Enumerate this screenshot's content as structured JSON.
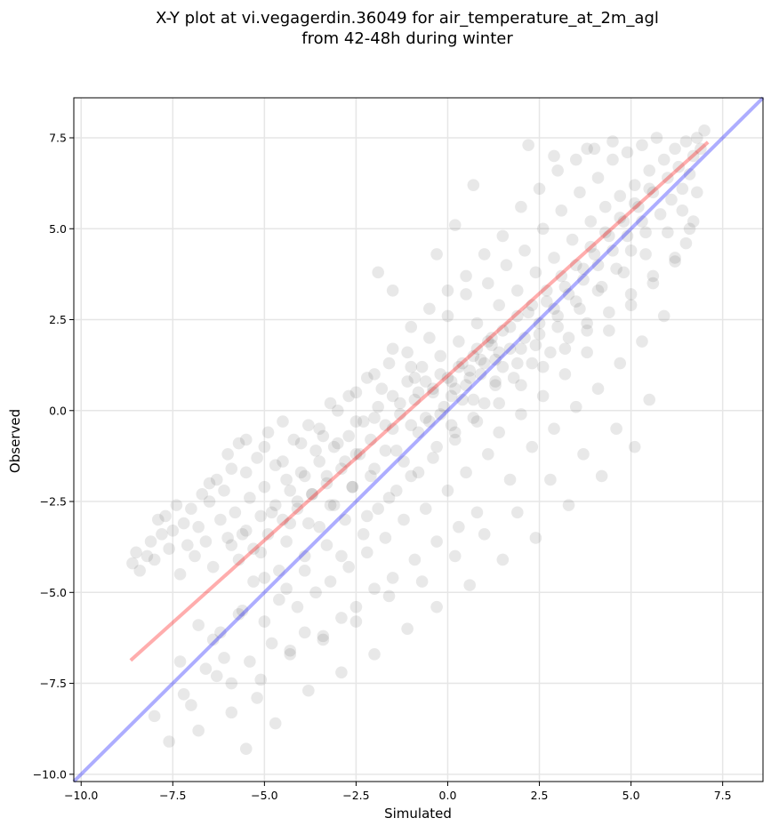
{
  "chart_data": {
    "type": "scatter",
    "title_line1": "X-Y plot at vi.vegagerdin.36049 for air_temperature_at_2m_agl",
    "title_line2": "from 42-48h during winter",
    "xlabel": "Simulated",
    "ylabel": "Observed",
    "xlim": [
      -10.2,
      8.6
    ],
    "ylim": [
      -10.2,
      8.6
    ],
    "xticks": [
      -10.0,
      -7.5,
      -5.0,
      -2.5,
      0.0,
      2.5,
      5.0,
      7.5
    ],
    "yticks": [
      -10.0,
      -7.5,
      -5.0,
      -2.5,
      0.0,
      2.5,
      5.0,
      7.5
    ],
    "xtick_labels": [
      "−10.0",
      "−7.5",
      "−5.0",
      "−2.5",
      "0.0",
      "2.5",
      "5.0",
      "7.5"
    ],
    "ytick_labels": [
      "−10.0",
      "−7.5",
      "−5.0",
      "−2.5",
      "0.0",
      "2.5",
      "5.0",
      "7.5"
    ],
    "grid": true,
    "point_color": "#000000",
    "point_alpha": 0.09,
    "identity_line": {
      "x": [
        -10.2,
        8.6
      ],
      "y": [
        -10.2,
        8.6
      ],
      "color": "#0000ff"
    },
    "fit_line": {
      "x": [
        -8.65,
        7.1
      ],
      "y": [
        -6.87,
        7.38
      ],
      "color": "#ff0000"
    },
    "points": [
      [
        -8.6,
        -4.2
      ],
      [
        -8.5,
        -3.9
      ],
      [
        -8.4,
        -4.4
      ],
      [
        -8.2,
        -4.0
      ],
      [
        -8.1,
        -3.6
      ],
      [
        -8.0,
        -4.1
      ],
      [
        -7.9,
        -3.0
      ],
      [
        -7.8,
        -3.4
      ],
      [
        -7.7,
        -2.9
      ],
      [
        -7.6,
        -3.8
      ],
      [
        -7.5,
        -3.3
      ],
      [
        -7.4,
        -2.6
      ],
      [
        -7.3,
        -4.5
      ],
      [
        -7.2,
        -3.1
      ],
      [
        -7.1,
        -3.7
      ],
      [
        -7.0,
        -2.7
      ],
      [
        -6.9,
        -4.0
      ],
      [
        -6.8,
        -3.2
      ],
      [
        -6.7,
        -2.3
      ],
      [
        -6.6,
        -3.6
      ],
      [
        -6.5,
        -2.5
      ],
      [
        -6.4,
        -4.3
      ],
      [
        -6.3,
        -1.9
      ],
      [
        -6.2,
        -3.0
      ],
      [
        -6.1,
        -2.2
      ],
      [
        -6.0,
        -3.5
      ],
      [
        -5.9,
        -1.6
      ],
      [
        -5.8,
        -2.8
      ],
      [
        -5.7,
        -0.9
      ],
      [
        -5.6,
        -3.4
      ],
      [
        -5.5,
        -1.7
      ],
      [
        -5.4,
        -2.4
      ],
      [
        -5.3,
        -4.7
      ],
      [
        -5.2,
        -1.3
      ],
      [
        -5.1,
        -3.9
      ],
      [
        -5.0,
        -2.1
      ],
      [
        -4.9,
        -0.6
      ],
      [
        -4.8,
        -2.8
      ],
      [
        -4.7,
        -1.5
      ],
      [
        -4.6,
        -4.4
      ],
      [
        -4.5,
        -0.3
      ],
      [
        -4.4,
        -1.9
      ],
      [
        -4.3,
        -3.1
      ],
      [
        -4.2,
        -0.8
      ],
      [
        -4.1,
        -2.5
      ],
      [
        -4.0,
        -1.7
      ],
      [
        -3.9,
        -4.0
      ],
      [
        -3.8,
        -0.4
      ],
      [
        -3.7,
        -2.3
      ],
      [
        -3.6,
        -1.1
      ],
      [
        -3.5,
        -3.2
      ],
      [
        -3.4,
        -0.7
      ],
      [
        -3.3,
        -1.8
      ],
      [
        -3.2,
        0.2
      ],
      [
        -3.1,
        -2.6
      ],
      [
        -3.0,
        -0.9
      ],
      [
        -2.9,
        -4.0
      ],
      [
        -2.8,
        -1.4
      ],
      [
        -2.7,
        0.4
      ],
      [
        -2.6,
        -2.1
      ],
      [
        -2.5,
        -0.3
      ],
      [
        -2.4,
        -1.2
      ],
      [
        -2.3,
        -3.4
      ],
      [
        -2.2,
        0.9
      ],
      [
        -2.1,
        -1.8
      ],
      [
        -2.0,
        -0.2
      ],
      [
        -1.9,
        -2.7
      ],
      [
        -1.8,
        0.6
      ],
      [
        -1.7,
        -1.1
      ],
      [
        -1.6,
        1.3
      ],
      [
        -1.5,
        -0.5
      ],
      [
        -1.4,
        -2.2
      ],
      [
        -1.3,
        0.2
      ],
      [
        -1.2,
        -1.4
      ],
      [
        -1.1,
        1.6
      ],
      [
        -1.0,
        -0.4
      ],
      [
        -0.9,
        0.9
      ],
      [
        -0.8,
        -1.7
      ],
      [
        -0.7,
        1.2
      ],
      [
        -0.6,
        -0.2
      ],
      [
        -0.5,
        2.0
      ],
      [
        -0.4,
        0.5
      ],
      [
        -0.3,
        -1.0
      ],
      [
        -0.2,
        1.5
      ],
      [
        -0.1,
        0.1
      ],
      [
        0.0,
        2.6
      ],
      [
        0.1,
        0.8
      ],
      [
        0.2,
        -0.6
      ],
      [
        0.3,
        1.9
      ],
      [
        0.4,
        0.3
      ],
      [
        0.5,
        3.2
      ],
      [
        0.6,
        1.1
      ],
      [
        0.7,
        -0.2
      ],
      [
        0.8,
        2.4
      ],
      [
        0.9,
        1.4
      ],
      [
        1.0,
        0.2
      ],
      [
        1.1,
        3.5
      ],
      [
        1.2,
        1.8
      ],
      [
        1.3,
        0.7
      ],
      [
        1.4,
        2.9
      ],
      [
        1.5,
        1.2
      ],
      [
        1.6,
        4.0
      ],
      [
        1.7,
        2.3
      ],
      [
        1.8,
        0.9
      ],
      [
        1.9,
        3.3
      ],
      [
        2.0,
        1.7
      ],
      [
        2.1,
        4.4
      ],
      [
        2.2,
        2.7
      ],
      [
        2.3,
        1.3
      ],
      [
        2.4,
        3.8
      ],
      [
        2.5,
        2.1
      ],
      [
        2.6,
        5.0
      ],
      [
        2.7,
        3.0
      ],
      [
        2.8,
        1.6
      ],
      [
        2.9,
        4.2
      ],
      [
        3.0,
        2.6
      ],
      [
        3.1,
        5.5
      ],
      [
        3.2,
        3.4
      ],
      [
        3.3,
        2.0
      ],
      [
        3.4,
        4.7
      ],
      [
        3.5,
        3.0
      ],
      [
        3.6,
        6.0
      ],
      [
        3.7,
        3.9
      ],
      [
        3.8,
        2.4
      ],
      [
        3.9,
        5.2
      ],
      [
        4.0,
        4.3
      ],
      [
        4.1,
        6.4
      ],
      [
        4.2,
        3.4
      ],
      [
        4.3,
        5.6
      ],
      [
        4.4,
        4.8
      ],
      [
        4.5,
        6.9
      ],
      [
        4.6,
        3.9
      ],
      [
        4.7,
        5.9
      ],
      [
        4.8,
        5.2
      ],
      [
        4.9,
        7.1
      ],
      [
        5.0,
        4.4
      ],
      [
        5.1,
        6.2
      ],
      [
        5.2,
        5.6
      ],
      [
        5.3,
        7.3
      ],
      [
        5.4,
        4.9
      ],
      [
        5.5,
        6.6
      ],
      [
        5.6,
        6.0
      ],
      [
        5.7,
        7.5
      ],
      [
        5.8,
        5.4
      ],
      [
        5.9,
        6.9
      ],
      [
        6.0,
        6.4
      ],
      [
        6.1,
        5.8
      ],
      [
        6.2,
        7.2
      ],
      [
        6.3,
        6.7
      ],
      [
        6.4,
        6.1
      ],
      [
        6.5,
        7.4
      ],
      [
        6.6,
        6.5
      ],
      [
        6.7,
        7.0
      ],
      [
        6.8,
        7.5
      ],
      [
        6.9,
        7.2
      ],
      [
        7.0,
        7.7
      ],
      [
        -7.3,
        -6.9
      ],
      [
        -7.0,
        -8.1
      ],
      [
        -6.8,
        -5.9
      ],
      [
        -6.6,
        -7.1
      ],
      [
        -6.4,
        -6.3
      ],
      [
        -6.1,
        -6.8
      ],
      [
        -5.9,
        -7.5
      ],
      [
        -5.7,
        -5.6
      ],
      [
        -5.4,
        -6.9
      ],
      [
        -5.2,
        -7.9
      ],
      [
        -5.0,
        -5.8
      ],
      [
        -4.8,
        -6.4
      ],
      [
        -4.6,
        -5.2
      ],
      [
        -4.3,
        -6.7
      ],
      [
        -4.1,
        -5.4
      ],
      [
        -3.9,
        -6.1
      ],
      [
        -3.6,
        -5.0
      ],
      [
        -3.4,
        -6.3
      ],
      [
        -3.2,
        -4.7
      ],
      [
        -2.9,
        -5.7
      ],
      [
        -2.7,
        -4.3
      ],
      [
        -2.5,
        -5.4
      ],
      [
        -2.2,
        -3.9
      ],
      [
        -2.0,
        -4.9
      ],
      [
        -1.7,
        -3.5
      ],
      [
        -1.5,
        -4.6
      ],
      [
        -1.2,
        -3.0
      ],
      [
        -0.9,
        -4.1
      ],
      [
        -0.6,
        -2.7
      ],
      [
        -0.3,
        -3.6
      ],
      [
        0.0,
        -2.2
      ],
      [
        0.3,
        -3.2
      ],
      [
        0.5,
        -1.7
      ],
      [
        0.8,
        -2.8
      ],
      [
        1.1,
        -1.2
      ],
      [
        1.4,
        -0.6
      ],
      [
        1.7,
        -1.9
      ],
      [
        2.0,
        -0.1
      ],
      [
        2.3,
        -1.0
      ],
      [
        2.6,
        0.4
      ],
      [
        2.9,
        -0.5
      ],
      [
        3.2,
        1.0
      ],
      [
        3.5,
        0.1
      ],
      [
        3.8,
        1.6
      ],
      [
        4.1,
        0.6
      ],
      [
        4.4,
        2.2
      ],
      [
        4.7,
        1.3
      ],
      [
        5.0,
        2.9
      ],
      [
        5.3,
        1.9
      ],
      [
        5.6,
        3.5
      ],
      [
        5.9,
        2.6
      ],
      [
        6.2,
        4.1
      ],
      [
        6.5,
        4.6
      ],
      [
        6.7,
        5.2
      ],
      [
        -8.0,
        -8.4
      ],
      [
        -7.6,
        -9.1
      ],
      [
        -7.2,
        -7.8
      ],
      [
        -6.8,
        -8.8
      ],
      [
        -6.3,
        -7.3
      ],
      [
        -5.9,
        -8.3
      ],
      [
        -5.5,
        -9.3
      ],
      [
        -5.1,
        -7.4
      ],
      [
        -4.7,
        -8.6
      ],
      [
        -4.3,
        -6.6
      ],
      [
        -3.8,
        -7.7
      ],
      [
        -3.4,
        -6.2
      ],
      [
        -2.9,
        -7.2
      ],
      [
        -2.5,
        -5.8
      ],
      [
        -2.0,
        -6.7
      ],
      [
        -1.6,
        -5.1
      ],
      [
        -1.1,
        -6.0
      ],
      [
        -0.7,
        -4.7
      ],
      [
        -0.3,
        -5.4
      ],
      [
        0.2,
        -4.0
      ],
      [
        0.6,
        -4.8
      ],
      [
        1.0,
        -3.4
      ],
      [
        1.5,
        -4.1
      ],
      [
        1.9,
        -2.8
      ],
      [
        2.4,
        -3.5
      ],
      [
        2.8,
        -1.9
      ],
      [
        3.3,
        -2.6
      ],
      [
        3.7,
        -1.2
      ],
      [
        4.2,
        -1.8
      ],
      [
        4.6,
        -0.5
      ],
      [
        5.1,
        -1.0
      ],
      [
        5.5,
        0.3
      ],
      [
        -6.5,
        -2.0
      ],
      [
        -6.0,
        -1.2
      ],
      [
        -5.5,
        -0.8
      ],
      [
        -5.0,
        -1.0
      ],
      [
        -4.5,
        -1.4
      ],
      [
        -4.0,
        -0.9
      ],
      [
        -3.5,
        -0.5
      ],
      [
        -3.0,
        0.0
      ],
      [
        -2.5,
        0.5
      ],
      [
        -2.0,
        1.0
      ],
      [
        -1.5,
        1.7
      ],
      [
        -1.0,
        2.3
      ],
      [
        -0.5,
        2.8
      ],
      [
        0.0,
        3.3
      ],
      [
        0.5,
        3.7
      ],
      [
        1.0,
        4.3
      ],
      [
        1.5,
        4.8
      ],
      [
        2.0,
        5.6
      ],
      [
        2.5,
        6.1
      ],
      [
        3.0,
        6.6
      ],
      [
        3.5,
        6.9
      ],
      [
        4.0,
        7.2
      ],
      [
        4.5,
        7.4
      ],
      [
        2.2,
        7.3
      ],
      [
        0.7,
        6.2
      ],
      [
        2.9,
        7.0
      ],
      [
        3.8,
        7.2
      ],
      [
        0.2,
        5.1
      ],
      [
        -0.3,
        4.3
      ],
      [
        -1.5,
        3.3
      ],
      [
        -1.9,
        3.8
      ],
      [
        -0.4,
        0.6
      ],
      [
        -0.2,
        1.0
      ],
      [
        0.1,
        0.4
      ],
      [
        0.3,
        1.2
      ],
      [
        0.5,
        0.7
      ],
      [
        0.7,
        1.5
      ],
      [
        0.9,
        1.0
      ],
      [
        1.1,
        1.9
      ],
      [
        1.3,
        1.4
      ],
      [
        1.5,
        2.2
      ],
      [
        1.7,
        1.7
      ],
      [
        1.9,
        2.6
      ],
      [
        2.1,
        2.0
      ],
      [
        2.3,
        2.9
      ],
      [
        2.5,
        2.4
      ],
      [
        2.7,
        3.3
      ],
      [
        2.9,
        2.8
      ],
      [
        3.1,
        3.7
      ],
      [
        3.3,
        3.2
      ],
      [
        3.5,
        4.0
      ],
      [
        3.7,
        3.6
      ],
      [
        3.9,
        4.5
      ],
      [
        4.1,
        4.0
      ],
      [
        4.3,
        4.9
      ],
      [
        4.5,
        4.4
      ],
      [
        4.7,
        5.3
      ],
      [
        4.9,
        4.8
      ],
      [
        5.1,
        5.7
      ],
      [
        5.3,
        5.2
      ],
      [
        5.5,
        6.1
      ],
      [
        -0.9,
        0.3
      ],
      [
        -1.1,
        0.8
      ],
      [
        -1.3,
        -0.1
      ],
      [
        -1.5,
        0.4
      ],
      [
        -1.7,
        -0.4
      ],
      [
        -1.9,
        0.1
      ],
      [
        -2.1,
        -0.8
      ],
      [
        -2.3,
        -0.3
      ],
      [
        -2.5,
        -1.2
      ],
      [
        -2.7,
        -0.7
      ],
      [
        -2.9,
        -1.6
      ],
      [
        -3.1,
        -1.0
      ],
      [
        -3.3,
        -2.0
      ],
      [
        -3.5,
        -1.4
      ],
      [
        -3.7,
        -2.3
      ],
      [
        -3.9,
        -1.8
      ],
      [
        -4.1,
        -2.7
      ],
      [
        -4.3,
        -2.2
      ],
      [
        -4.5,
        -3.0
      ],
      [
        -4.7,
        -2.6
      ],
      [
        -4.9,
        -3.4
      ],
      [
        -5.1,
        -2.9
      ],
      [
        -5.3,
        -3.8
      ],
      [
        -5.5,
        -3.3
      ],
      [
        -5.7,
        -4.1
      ],
      [
        -5.9,
        -3.7
      ],
      [
        0.0,
        0.9
      ],
      [
        0.2,
        0.6
      ],
      [
        0.4,
        1.3
      ],
      [
        0.6,
        0.9
      ],
      [
        0.8,
        1.7
      ],
      [
        1.0,
        1.3
      ],
      [
        1.2,
        2.0
      ],
      [
        1.4,
        1.6
      ],
      [
        -0.6,
        0.8
      ],
      [
        -0.8,
        0.5
      ],
      [
        -1.0,
        1.2
      ],
      [
        -0.5,
        -0.3
      ],
      [
        0.1,
        -0.4
      ],
      [
        0.7,
        0.3
      ],
      [
        1.3,
        0.8
      ],
      [
        1.9,
        1.3
      ],
      [
        2.4,
        1.8
      ],
      [
        3.0,
        2.3
      ],
      [
        3.6,
        2.8
      ],
      [
        4.1,
        3.3
      ],
      [
        4.8,
        3.8
      ],
      [
        5.4,
        4.3
      ],
      [
        6.0,
        4.9
      ],
      [
        6.4,
        5.5
      ],
      [
        -4.4,
        -3.6
      ],
      [
        -3.8,
        -3.1
      ],
      [
        -3.2,
        -2.6
      ],
      [
        -2.6,
        -2.1
      ],
      [
        -2.0,
        -1.6
      ],
      [
        -1.4,
        -1.1
      ],
      [
        -0.8,
        -0.6
      ],
      [
        -0.2,
        -0.1
      ],
      [
        -6.2,
        -6.1
      ],
      [
        -5.6,
        -5.5
      ],
      [
        -5.0,
        -4.6
      ],
      [
        -4.4,
        -4.9
      ],
      [
        -3.9,
        -4.4
      ],
      [
        -3.3,
        -3.7
      ],
      [
        -2.8,
        -3.0
      ],
      [
        -2.2,
        -2.9
      ],
      [
        -1.6,
        -2.4
      ],
      [
        -1.0,
        -1.8
      ],
      [
        -0.4,
        -1.3
      ],
      [
        0.2,
        -0.8
      ],
      [
        0.8,
        -0.3
      ],
      [
        1.4,
        0.2
      ],
      [
        2.0,
        0.7
      ],
      [
        2.6,
        1.2
      ],
      [
        3.2,
        1.7
      ],
      [
        3.8,
        2.2
      ],
      [
        4.4,
        2.7
      ],
      [
        5.0,
        3.2
      ],
      [
        5.6,
        3.7
      ],
      [
        6.2,
        4.2
      ],
      [
        6.6,
        5.0
      ],
      [
        6.8,
        6.0
      ]
    ]
  }
}
